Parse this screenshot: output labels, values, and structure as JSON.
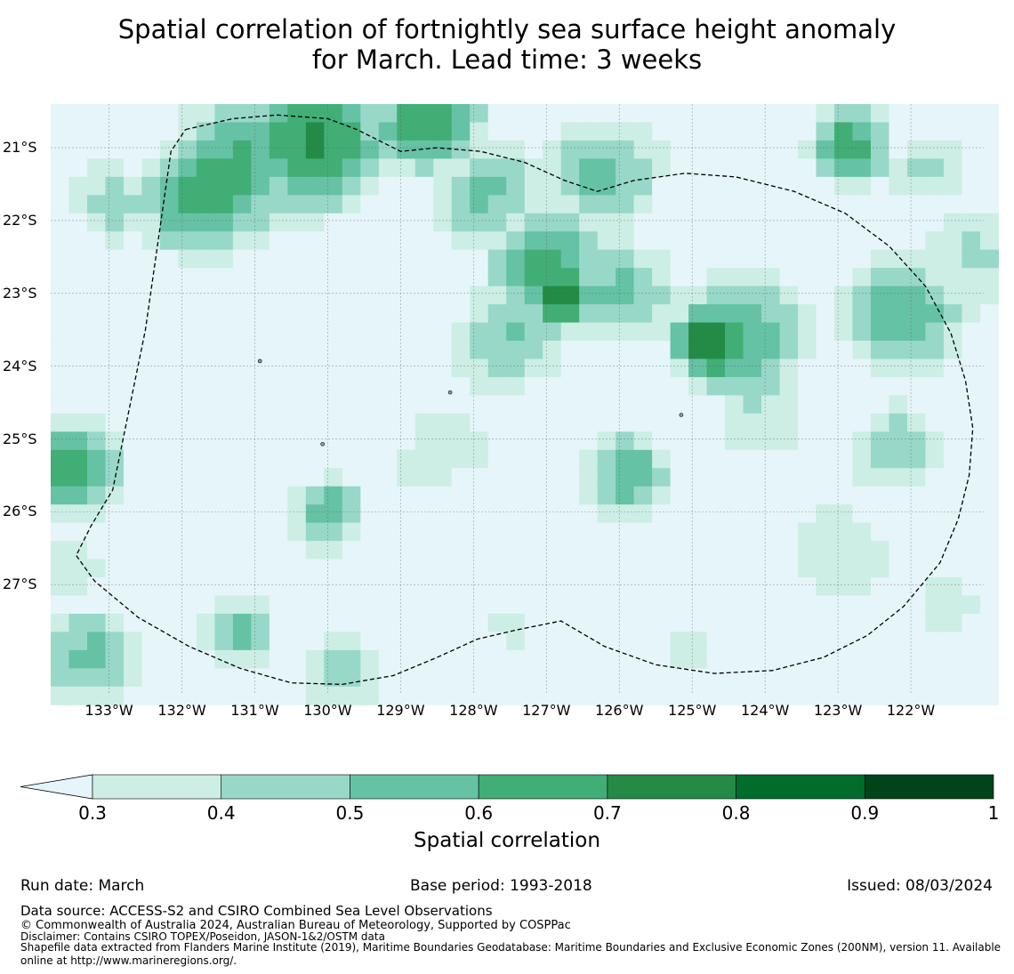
{
  "title": {
    "line1": "Spatial correlation of fortnightly sea surface height anomaly",
    "line2": "for March. Lead time: 3 weeks"
  },
  "map": {
    "lon_range": [
      -133.8,
      -121.0
    ],
    "lat_range": [
      -28.5,
      -20.4
    ],
    "lon_ticks": [
      {
        "value": -133,
        "label": "133°W"
      },
      {
        "value": -132,
        "label": "132°W"
      },
      {
        "value": -131,
        "label": "131°W"
      },
      {
        "value": -130,
        "label": "130°W"
      },
      {
        "value": -129,
        "label": "129°W"
      },
      {
        "value": -128,
        "label": "128°W"
      },
      {
        "value": -127,
        "label": "127°W"
      },
      {
        "value": -126,
        "label": "126°W"
      },
      {
        "value": -125,
        "label": "125°W"
      },
      {
        "value": -124,
        "label": "124°W"
      },
      {
        "value": -123,
        "label": "123°W"
      },
      {
        "value": -122,
        "label": "122°W"
      }
    ],
    "lat_ticks": [
      {
        "value": -21,
        "label": "21°S"
      },
      {
        "value": -22,
        "label": "22°S"
      },
      {
        "value": -23,
        "label": "23°S"
      },
      {
        "value": -24,
        "label": "24°S"
      },
      {
        "value": -25,
        "label": "25°S"
      },
      {
        "value": -26,
        "label": "26°S"
      },
      {
        "value": -27,
        "label": "27°S"
      }
    ],
    "eez_boundary": [
      [
        -131.95,
        -20.75
      ],
      [
        -131.3,
        -20.6
      ],
      [
        -130.7,
        -20.55
      ],
      [
        -130.0,
        -20.6
      ],
      [
        -129.6,
        -20.75
      ],
      [
        -129.0,
        -21.05
      ],
      [
        -128.5,
        -21.0
      ],
      [
        -127.9,
        -21.05
      ],
      [
        -127.3,
        -21.2
      ],
      [
        -126.75,
        -21.45
      ],
      [
        -126.3,
        -21.6
      ],
      [
        -125.8,
        -21.45
      ],
      [
        -125.1,
        -21.35
      ],
      [
        -124.4,
        -21.4
      ],
      [
        -123.6,
        -21.6
      ],
      [
        -122.9,
        -21.9
      ],
      [
        -122.3,
        -22.35
      ],
      [
        -121.8,
        -22.9
      ],
      [
        -121.45,
        -23.55
      ],
      [
        -121.25,
        -24.2
      ],
      [
        -121.15,
        -24.85
      ],
      [
        -121.2,
        -25.5
      ],
      [
        -121.35,
        -26.1
      ],
      [
        -121.6,
        -26.7
      ],
      [
        -122.1,
        -27.3
      ],
      [
        -122.6,
        -27.7
      ],
      [
        -123.2,
        -28.0
      ],
      [
        -123.9,
        -28.18
      ],
      [
        -124.7,
        -28.22
      ],
      [
        -125.5,
        -28.1
      ],
      [
        -126.2,
        -27.85
      ],
      [
        -126.8,
        -27.5
      ],
      [
        -127.4,
        -27.62
      ],
      [
        -127.95,
        -27.75
      ],
      [
        -128.5,
        -28.0
      ],
      [
        -129.1,
        -28.25
      ],
      [
        -129.8,
        -28.37
      ],
      [
        -130.5,
        -28.35
      ],
      [
        -131.2,
        -28.15
      ],
      [
        -131.9,
        -27.85
      ],
      [
        -132.6,
        -27.45
      ],
      [
        -133.2,
        -26.95
      ],
      [
        -133.45,
        -26.6
      ],
      [
        -133.25,
        -26.2
      ],
      [
        -132.95,
        -25.7
      ],
      [
        -132.5,
        -23.5
      ],
      [
        -132.15,
        -21.05
      ],
      [
        -131.95,
        -20.75
      ]
    ],
    "islands": [
      [
        -128.32,
        -24.36
      ],
      [
        -125.15,
        -24.67
      ],
      [
        -130.07,
        -25.07
      ],
      [
        -130.93,
        -23.93
      ]
    ],
    "blobs": [
      {
        "lon": -130.2,
        "lat": -20.9,
        "v": 0.76,
        "s": 0.8
      },
      {
        "lon": -128.6,
        "lat": -20.6,
        "v": 0.68,
        "s": 0.7
      },
      {
        "lon": -131.6,
        "lat": -21.6,
        "v": 0.7,
        "s": 0.8
      },
      {
        "lon": -133.0,
        "lat": -21.8,
        "v": 0.46,
        "s": 0.6
      },
      {
        "lon": -127.0,
        "lat": -22.6,
        "v": 0.66,
        "s": 0.7
      },
      {
        "lon": -126.8,
        "lat": -23.0,
        "v": 0.78,
        "s": 0.45
      },
      {
        "lon": -126.0,
        "lat": -23.0,
        "v": 0.55,
        "s": 0.7
      },
      {
        "lon": -124.7,
        "lat": -23.7,
        "v": 0.8,
        "s": 0.5
      },
      {
        "lon": -124.3,
        "lat": -23.6,
        "v": 0.62,
        "s": 0.8
      },
      {
        "lon": -127.5,
        "lat": -23.6,
        "v": 0.5,
        "s": 0.8
      },
      {
        "lon": -125.9,
        "lat": -25.5,
        "v": 0.6,
        "s": 0.55
      },
      {
        "lon": -121.8,
        "lat": -21.3,
        "v": 0.45,
        "s": 0.5
      },
      {
        "lon": -121.1,
        "lat": -22.4,
        "v": 0.45,
        "s": 0.7
      },
      {
        "lon": -122.1,
        "lat": -23.3,
        "v": 0.64,
        "s": 0.7
      },
      {
        "lon": -122.8,
        "lat": -21.0,
        "v": 0.66,
        "s": 0.5
      },
      {
        "lon": -122.2,
        "lat": -25.2,
        "v": 0.5,
        "s": 0.6
      },
      {
        "lon": -123.0,
        "lat": -26.6,
        "v": 0.42,
        "s": 0.7
      },
      {
        "lon": -133.5,
        "lat": -25.4,
        "v": 0.65,
        "s": 0.6
      },
      {
        "lon": -130.0,
        "lat": -26.0,
        "v": 0.6,
        "s": 0.45
      },
      {
        "lon": -133.3,
        "lat": -28.0,
        "v": 0.5,
        "s": 0.7
      },
      {
        "lon": -131.2,
        "lat": -27.6,
        "v": 0.5,
        "s": 0.5
      },
      {
        "lon": -129.8,
        "lat": -28.2,
        "v": 0.5,
        "s": 0.5
      },
      {
        "lon": -127.5,
        "lat": -27.5,
        "v": 0.34,
        "s": 0.5
      },
      {
        "lon": -125.1,
        "lat": -27.8,
        "v": 0.32,
        "s": 0.5
      },
      {
        "lon": -133.5,
        "lat": -26.8,
        "v": 0.4,
        "s": 0.6
      },
      {
        "lon": -131.2,
        "lat": -21.2,
        "v": 0.58,
        "s": 0.9
      },
      {
        "lon": -127.8,
        "lat": -21.6,
        "v": 0.52,
        "s": 0.7
      },
      {
        "lon": -126.2,
        "lat": -21.3,
        "v": 0.56,
        "s": 0.7
      },
      {
        "lon": -128.4,
        "lat": -25.2,
        "v": 0.38,
        "s": 0.8
      },
      {
        "lon": -124.0,
        "lat": -24.7,
        "v": 0.38,
        "s": 0.8
      },
      {
        "lon": -121.5,
        "lat": -27.2,
        "v": 0.4,
        "s": 0.5
      }
    ]
  },
  "colorbar": {
    "levels": [
      0.3,
      0.4,
      0.5,
      0.6,
      0.7,
      0.8,
      0.9,
      1.0
    ],
    "tick_labels": [
      "0.3",
      "0.4",
      "0.5",
      "0.6",
      "0.7",
      "0.8",
      "0.9",
      "1"
    ],
    "colors": [
      "#cceee4",
      "#98d8c8",
      "#66c2a4",
      "#41ae76",
      "#238b45",
      "#006d2c",
      "#00441b"
    ],
    "under_color": "#e5f5f9",
    "label": "Spatial correlation"
  },
  "footer": {
    "run_date": "Run date: March",
    "base_period": "Base period: 1993-2018",
    "issued": "Issued: 08/03/2024",
    "data_source": "Data source: ACCESS-S2 and CSIRO Combined Sea Level Observations",
    "copyright": "© Commonwealth of Australia 2024, Australian Bureau of Meteorology, Supported by COSPPac",
    "disclaimer": "Disclaimer: Contains CSIRO TOPEX/Poseidon, JASON-1&2/OSTM data",
    "shapefile": "Shapefile data extracted from Flanders Marine Institute (2019), Maritime Boundaries Geodatabase: Maritime Boundaries and Exclusive Economic Zones (200NM), version 11. Available online at http://www.marineregions.org/."
  }
}
